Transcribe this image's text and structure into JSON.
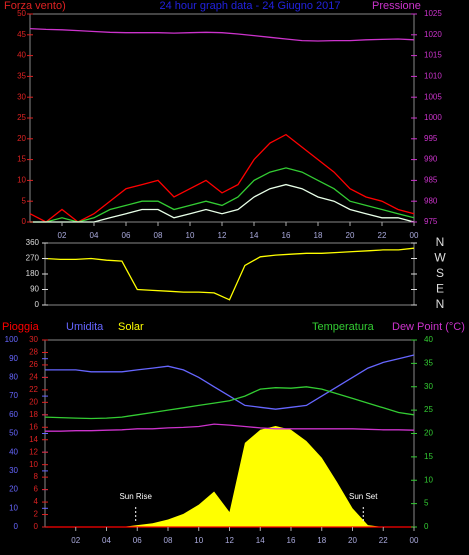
{
  "chart_data": [
    {
      "type": "line",
      "title": "24 hour graph data - 24 Giugno 2017",
      "y_label": "Forza vento)",
      "y2_label": "Pressione",
      "x": [
        0,
        1,
        2,
        3,
        4,
        5,
        6,
        7,
        8,
        9,
        10,
        11,
        12,
        13,
        14,
        15,
        16,
        17,
        18,
        19,
        20,
        21,
        22,
        23,
        24
      ],
      "xlim": [
        0,
        24
      ],
      "xticks": [
        {
          "value": 2,
          "label": "02"
        },
        {
          "value": 4,
          "label": "04"
        },
        {
          "value": 6,
          "label": "06"
        },
        {
          "value": 8,
          "label": "08"
        },
        {
          "value": 10,
          "label": "10"
        },
        12,
        14,
        16,
        18,
        20,
        22,
        {
          "value": 24,
          "label": "00"
        }
      ],
      "ylim": [
        0,
        50
      ],
      "yticks": [
        0,
        5,
        10,
        15,
        20,
        25,
        30,
        35,
        40,
        45,
        50
      ],
      "y2lim": [
        975,
        1025
      ],
      "y2ticks": [
        975,
        980,
        985,
        990,
        995,
        1000,
        1005,
        1010,
        1015,
        1020,
        1025
      ],
      "series": [
        {
          "color": "#ff0000",
          "values": [
            2,
            0,
            3,
            0,
            2,
            5,
            8,
            9,
            10,
            6,
            8,
            10,
            7,
            9,
            15,
            19,
            21,
            18,
            15,
            12,
            8,
            6,
            5,
            3,
            2
          ]
        },
        {
          "color": "#33cc33",
          "values": [
            0,
            0,
            1,
            0,
            1,
            3,
            4,
            5,
            5,
            3,
            4,
            5,
            4,
            6,
            10,
            12,
            13,
            12,
            10,
            8,
            5,
            4,
            3,
            2,
            1
          ]
        },
        {
          "color": "#e8ffe8",
          "values": [
            0,
            0,
            0,
            0,
            0,
            1,
            2,
            3,
            3,
            1,
            2,
            3,
            2,
            3,
            6,
            8,
            9,
            8,
            6,
            5,
            3,
            2,
            1,
            1,
            0
          ]
        },
        {
          "color": "#cc33cc",
          "axis": "y2",
          "values": [
            1021.5,
            1021.3,
            1021.2,
            1021,
            1020.8,
            1020.6,
            1020.5,
            1020.5,
            1020.5,
            1020.4,
            1020.5,
            1020.6,
            1020.5,
            1020.2,
            1019.8,
            1019.4,
            1019,
            1018.6,
            1018.5,
            1018.6,
            1018.6,
            1018.8,
            1018.9,
            1019,
            1018.8
          ]
        }
      ]
    },
    {
      "type": "line",
      "x": [
        0,
        1,
        2,
        3,
        4,
        5,
        6,
        7,
        8,
        9,
        10,
        11,
        12,
        13,
        14,
        15,
        16,
        17,
        18,
        19,
        20,
        21,
        22,
        23,
        24
      ],
      "xlim": [
        0,
        24
      ],
      "ylim": [
        0,
        360
      ],
      "yticks": [
        0,
        90,
        180,
        270,
        360
      ],
      "y2lim": [
        0,
        360
      ],
      "y2ticks": [
        {
          "value": 360,
          "label": "N"
        },
        {
          "value": 270,
          "label": "W"
        },
        {
          "value": 180,
          "label": "S"
        },
        {
          "value": 90,
          "label": "E"
        },
        {
          "value": 0,
          "label": "N"
        }
      ],
      "series": [
        {
          "color": "#ffff00",
          "values": [
            270,
            265,
            265,
            270,
            260,
            255,
            90,
            85,
            80,
            75,
            75,
            70,
            30,
            230,
            280,
            290,
            295,
            300,
            300,
            305,
            310,
            315,
            320,
            320,
            330
          ]
        }
      ]
    },
    {
      "type": "line",
      "x": [
        0,
        1,
        2,
        3,
        4,
        5,
        6,
        7,
        8,
        9,
        10,
        11,
        12,
        13,
        14,
        15,
        16,
        17,
        18,
        19,
        20,
        21,
        22,
        23,
        24
      ],
      "xlim": [
        0,
        24
      ],
      "xticks": [
        {
          "value": 2,
          "label": "02"
        },
        {
          "value": 4,
          "label": "04"
        },
        {
          "value": 6,
          "label": "06"
        },
        {
          "value": 8,
          "label": "08"
        },
        {
          "value": 10,
          "label": "10"
        },
        12,
        14,
        16,
        18,
        20,
        22,
        {
          "value": 24,
          "label": "00"
        }
      ],
      "ylim": [
        0,
        100
      ],
      "yticks": [
        0,
        10,
        20,
        30,
        40,
        50,
        60,
        70,
        80,
        90,
        100
      ],
      "y3lim": [
        0,
        30
      ],
      "y3ticks": [
        0,
        2,
        4,
        6,
        8,
        10,
        12,
        14,
        16,
        18,
        20,
        22,
        24,
        26,
        28,
        30
      ],
      "y2lim": [
        0,
        40
      ],
      "y2ticks": [
        0,
        5,
        10,
        15,
        20,
        25,
        30,
        35,
        40
      ],
      "annotations": [
        {
          "text": "Sun Rise",
          "x": 5.9
        },
        {
          "text": "Sun Set",
          "x": 20.7
        }
      ],
      "series": [
        {
          "name": "Solar",
          "color": "#ffff00",
          "area": true,
          "values": [
            0,
            0,
            0,
            0,
            0,
            0,
            1,
            2,
            4,
            7,
            12,
            19,
            8,
            45,
            52,
            54,
            52,
            46,
            37,
            24,
            10,
            1,
            0,
            0,
            0
          ]
        },
        {
          "name": "Pioggia",
          "color": "#ff0000",
          "axis": "y3",
          "values": [
            0,
            0,
            0,
            0,
            0,
            0,
            0,
            0,
            0,
            0,
            0,
            0,
            0,
            0,
            0,
            0,
            0,
            0,
            0,
            0,
            0,
            0,
            0,
            0,
            0
          ]
        },
        {
          "name": "Umidita",
          "color": "#6666ff",
          "values": [
            84,
            84,
            84,
            83,
            83,
            83,
            84,
            85,
            86,
            84,
            80,
            75,
            70,
            65,
            64,
            63,
            64,
            65,
            70,
            75,
            80,
            85,
            88,
            90,
            92
          ]
        },
        {
          "name": "Temperatura",
          "color": "#33cc33",
          "axis": "y2",
          "values": [
            23.5,
            23.4,
            23.3,
            23.2,
            23.3,
            23.5,
            24,
            24.5,
            25,
            25.5,
            26,
            26.5,
            27,
            28,
            29.5,
            29.8,
            29.7,
            30,
            29.5,
            28.5,
            27.5,
            26.5,
            25.5,
            24.5,
            24
          ]
        },
        {
          "name": "Dew Point (°C)",
          "color": "#cc33cc",
          "axis": "y2",
          "values": [
            20.5,
            20.5,
            20.6,
            20.6,
            20.7,
            20.8,
            21,
            21,
            21.2,
            21.3,
            21.5,
            22,
            21.8,
            21.5,
            21.2,
            21,
            21,
            21,
            21,
            21,
            21,
            20.9,
            20.8,
            20.8,
            20.7
          ]
        }
      ]
    }
  ]
}
